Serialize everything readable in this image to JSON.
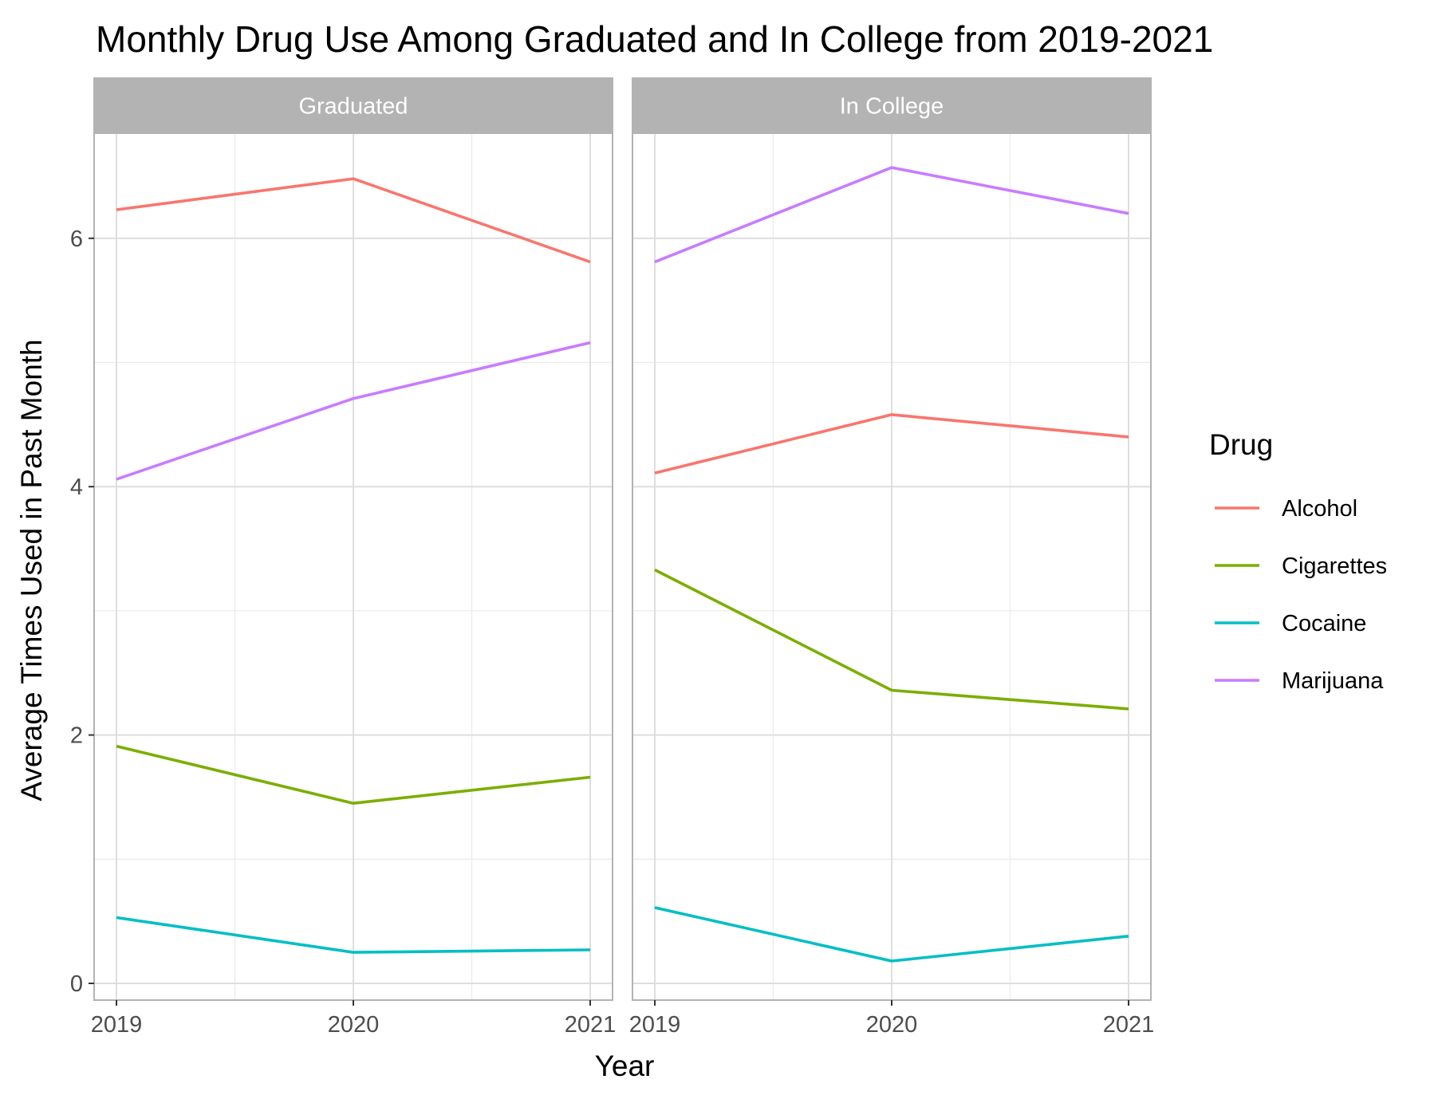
{
  "chart_data": {
    "type": "line",
    "title": "Monthly Drug Use Among Graduated and In College from 2019-2021",
    "xlabel": "Year",
    "ylabel": "Average Times Used in Past Month",
    "x": [
      2019,
      2020,
      2021
    ],
    "x_tick_labels": [
      "2019",
      "2020",
      "2021"
    ],
    "ylim": [
      0,
      6.8
    ],
    "y_ticks": [
      0,
      2,
      4,
      6
    ],
    "y_tick_labels": [
      "0",
      "2",
      "4",
      "6"
    ],
    "grid": true,
    "legend": {
      "title": "Drug",
      "position": "right",
      "entries": [
        "Alcohol",
        "Cigarettes",
        "Cocaine",
        "Marijuana"
      ]
    },
    "colors": {
      "Alcohol": "#F8766D",
      "Cigarettes": "#7CAE00",
      "Cocaine": "#00BFC4",
      "Marijuana": "#C77CFF"
    },
    "panels": [
      {
        "name": "Graduated",
        "series": [
          {
            "name": "Alcohol",
            "values": [
              6.23,
              6.48,
              5.81
            ]
          },
          {
            "name": "Cigarettes",
            "values": [
              1.91,
              1.45,
              1.66
            ]
          },
          {
            "name": "Cocaine",
            "values": [
              0.53,
              0.25,
              0.27
            ]
          },
          {
            "name": "Marijuana",
            "values": [
              4.06,
              4.71,
              5.16
            ]
          }
        ]
      },
      {
        "name": "In College",
        "series": [
          {
            "name": "Alcohol",
            "values": [
              4.11,
              4.58,
              4.4
            ]
          },
          {
            "name": "Cigarettes",
            "values": [
              3.33,
              2.36,
              2.21
            ]
          },
          {
            "name": "Cocaine",
            "values": [
              0.61,
              0.18,
              0.38
            ]
          },
          {
            "name": "Marijuana",
            "values": [
              5.81,
              6.57,
              6.2
            ]
          }
        ]
      }
    ]
  }
}
